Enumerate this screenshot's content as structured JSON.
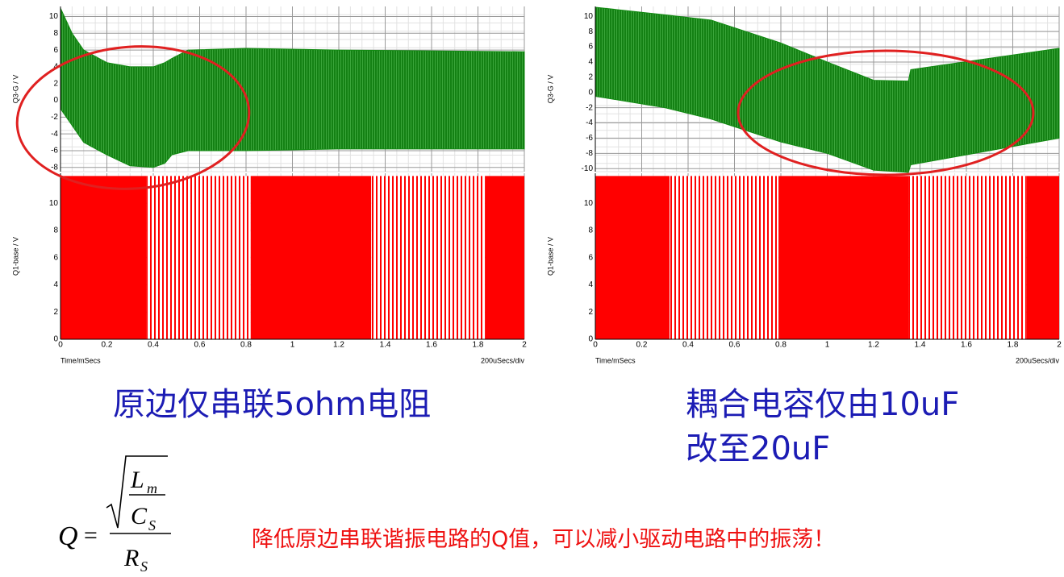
{
  "chart_data": [
    {
      "type": "waveform",
      "x_label": "Time/mSecs",
      "x_note": "200uSecs/div",
      "xlim": [
        0,
        2
      ],
      "xticks": [
        0,
        0.2,
        0.4,
        0.6,
        0.8,
        1,
        1.2,
        1.4,
        1.6,
        1.8,
        2
      ],
      "top": {
        "y_label": "Q3-G / V",
        "ylim": [
          -8.5,
          11.2
        ],
        "yticks": [
          -8,
          -6,
          -4,
          -2,
          0,
          2,
          4,
          6,
          8,
          10
        ],
        "color": "#128a12",
        "x": [
          0,
          0.05,
          0.1,
          0.2,
          0.3,
          0.4,
          0.45,
          0.48,
          0.55,
          0.8,
          1.2,
          2
        ],
        "upper": [
          11,
          8,
          6,
          4.5,
          4,
          4,
          4.5,
          5,
          6,
          6.2,
          6,
          5.8
        ],
        "lower": [
          -1,
          -3,
          -5,
          -6.5,
          -7.8,
          -8,
          -7.5,
          -6.5,
          -6,
          -6,
          -5.8,
          -5.8
        ]
      },
      "bottom": {
        "y_label": "Q1-base / V",
        "ylim": [
          0,
          12.2
        ],
        "yticks": [
          0,
          2,
          4,
          6,
          8,
          10
        ],
        "color": "#ff0000",
        "level": 12,
        "solid_spans": [
          [
            0,
            0.37
          ],
          [
            0.82,
            1.34
          ],
          [
            1.83,
            2
          ]
        ]
      }
    },
    {
      "type": "waveform",
      "x_label": "Time/mSecs",
      "x_note": "200uSecs/div",
      "xlim": [
        0,
        2
      ],
      "xticks": [
        0,
        0.2,
        0.4,
        0.6,
        0.8,
        1,
        1.2,
        1.4,
        1.6,
        1.8,
        2
      ],
      "top": {
        "y_label": "Q3-G / V",
        "ylim": [
          -10.4,
          11.3
        ],
        "yticks": [
          -10,
          -8,
          -6,
          -4,
          -2,
          0,
          2,
          4,
          6,
          8,
          10
        ],
        "color": "#128a12",
        "x": [
          0,
          0.3,
          0.5,
          0.8,
          1,
          1.2,
          1.35,
          1.36,
          2
        ],
        "upper": [
          11.2,
          10.2,
          9.5,
          6.5,
          4,
          1.6,
          1.5,
          3,
          5.8
        ],
        "lower": [
          -0.5,
          -2,
          -3.5,
          -6.5,
          -8,
          -10.2,
          -10.5,
          -9.5,
          -6
        ]
      },
      "bottom": {
        "y_label": "Q1-base / V",
        "ylim": [
          0,
          12.2
        ],
        "yticks": [
          0,
          2,
          4,
          6,
          8,
          10
        ],
        "color": "#ff0000",
        "level": 12,
        "solid_spans": [
          [
            0,
            0.32
          ],
          [
            0.79,
            1.35
          ],
          [
            1.86,
            2
          ]
        ]
      }
    }
  ],
  "captions": [
    [
      "原边仅串联5ohm电阻"
    ],
    [
      "耦合电容仅由10uF",
      "改至20uF"
    ]
  ],
  "formula": {
    "lhs": "Q",
    "eq": "=",
    "num": "L",
    "num_sub": "m",
    "den": "C",
    "den_sub": "S",
    "outer_den": "R",
    "outer_den_sub": "S"
  },
  "conclusion": "降低原边串联谐振电路的Q值，可以减小驱动电路中的振荡！"
}
